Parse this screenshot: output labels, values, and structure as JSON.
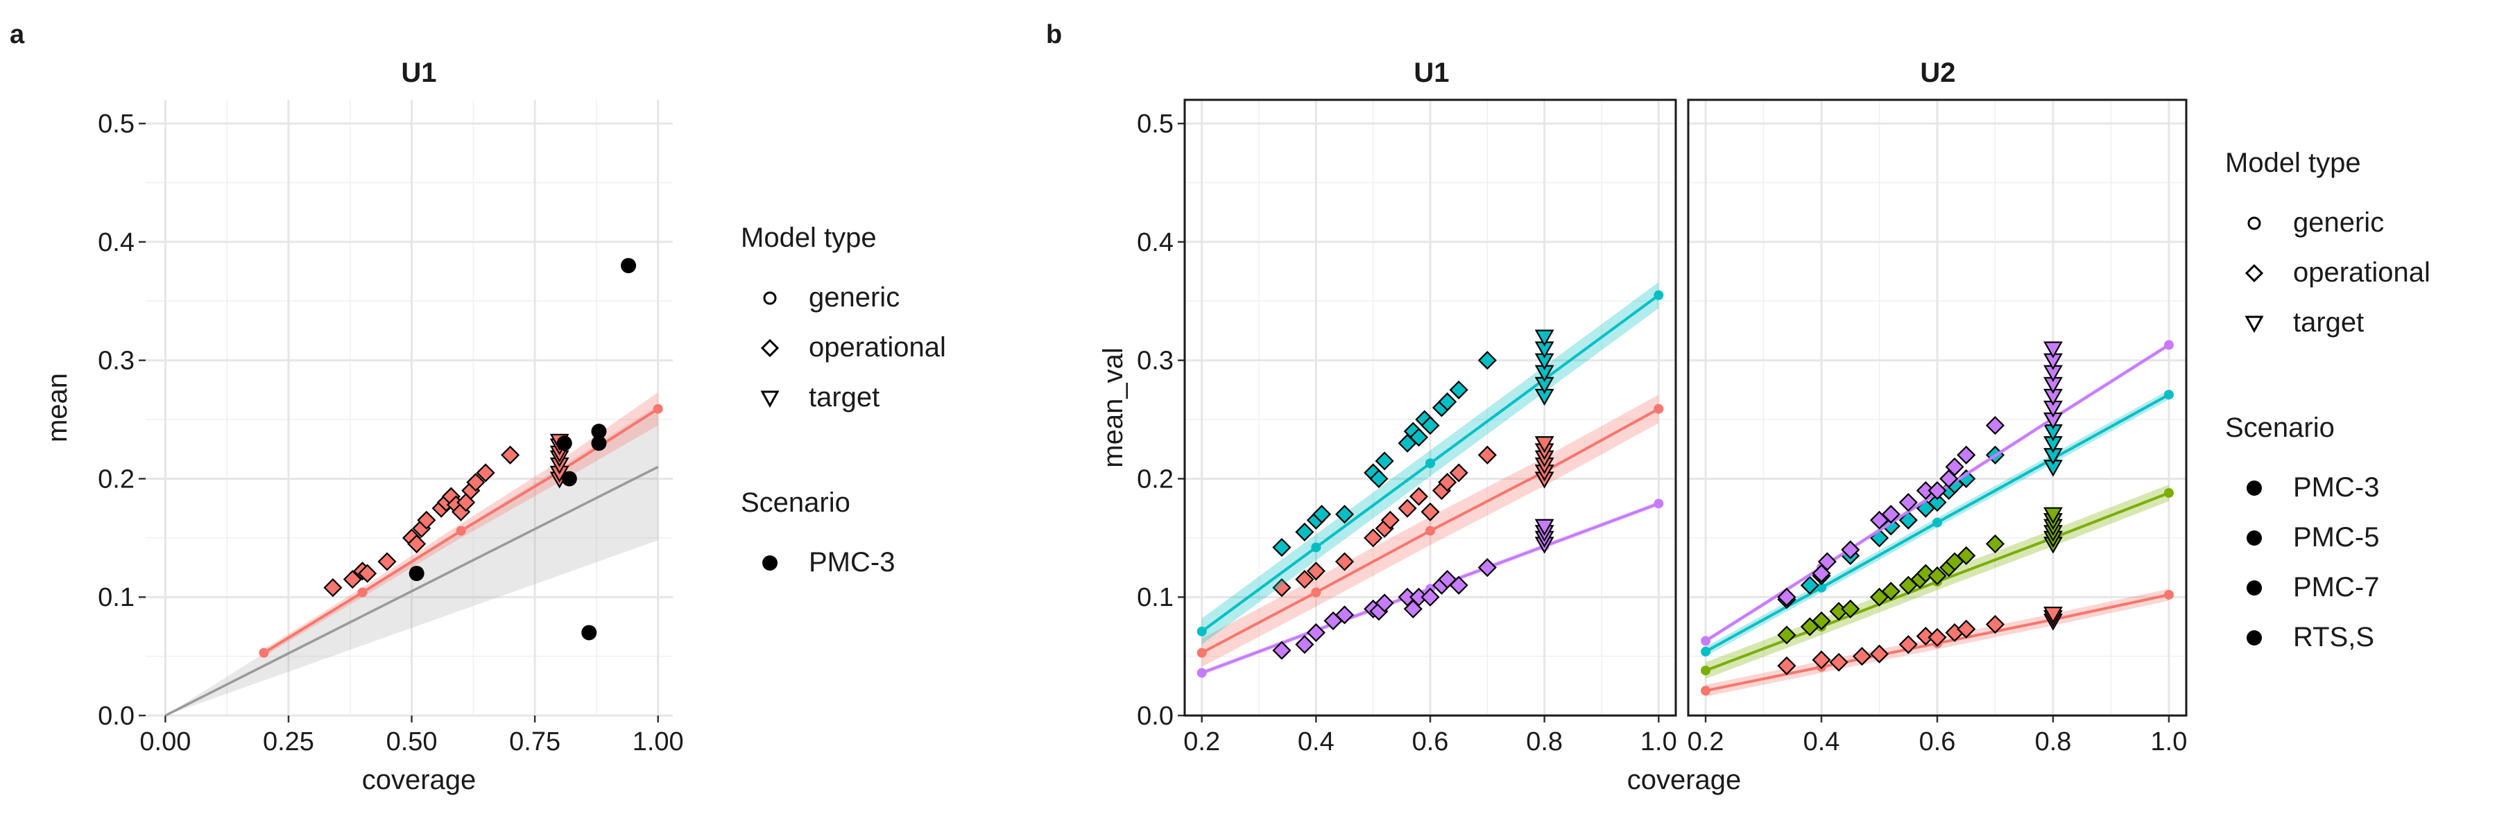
{
  "figure": {
    "panel_a_label": "a",
    "panel_b_label": "b"
  },
  "chart_data": [
    {
      "type": "scatter",
      "panel": "a",
      "title": "U1",
      "xlabel": "coverage",
      "ylabel": "mean",
      "xlim": [
        0,
        1.03
      ],
      "ylim": [
        0,
        0.52
      ],
      "xticks": [
        "0.00",
        "0.25",
        "0.50",
        "0.75",
        "1.00"
      ],
      "yticks": [
        "0.0",
        "0.1",
        "0.2",
        "0.3",
        "0.4",
        "0.5"
      ],
      "grid": true,
      "colors": {
        "model_line": "#F8766D",
        "reference": "#9a9a9a",
        "pmc3_points": "#000000"
      },
      "model_line": [
        [
          0.2,
          0.053
        ],
        [
          0.4,
          0.104
        ],
        [
          0.6,
          0.156
        ],
        [
          0.8,
          0.206
        ],
        [
          1.0,
          0.259
        ]
      ],
      "model_line_ci_halfwidth": [
        0.003,
        0.004,
        0.006,
        0.009,
        0.014
      ],
      "reference_line": {
        "x": [
          0,
          1
        ],
        "y": [
          0,
          0.21
        ],
        "ci_low": [
          0,
          0.148
        ],
        "ci_high": [
          0,
          0.262
        ]
      },
      "operational": [
        [
          0.34,
          0.108
        ],
        [
          0.38,
          0.115
        ],
        [
          0.4,
          0.122
        ],
        [
          0.41,
          0.12
        ],
        [
          0.45,
          0.13
        ],
        [
          0.5,
          0.15
        ],
        [
          0.51,
          0.145
        ],
        [
          0.52,
          0.158
        ],
        [
          0.53,
          0.165
        ],
        [
          0.56,
          0.175
        ],
        [
          0.57,
          0.18
        ],
        [
          0.58,
          0.185
        ],
        [
          0.59,
          0.178
        ],
        [
          0.6,
          0.172
        ],
        [
          0.61,
          0.18
        ],
        [
          0.62,
          0.19
        ],
        [
          0.63,
          0.197
        ],
        [
          0.65,
          0.205
        ],
        [
          0.7,
          0.22
        ]
      ],
      "target": [
        0.2,
        0.205,
        0.212,
        0.218,
        0.222,
        0.228,
        0.232
      ],
      "target_x": 0.8,
      "pmc3": [
        [
          0.51,
          0.12
        ],
        [
          0.81,
          0.23
        ],
        [
          0.82,
          0.2
        ],
        [
          0.86,
          0.07
        ],
        [
          0.88,
          0.23
        ],
        [
          0.88,
          0.24
        ],
        [
          0.94,
          0.38
        ]
      ],
      "legend": {
        "model_type_title": "Model type",
        "model_types": [
          "generic",
          "operational",
          "target"
        ],
        "scenario_title": "Scenario",
        "scenarios": [
          "PMC-3"
        ]
      }
    },
    {
      "type": "scatter",
      "panel": "b",
      "facets": [
        "U1",
        "U2"
      ],
      "xlabel": "coverage",
      "ylabel": "mean_val",
      "xlim": [
        0.17,
        1.03
      ],
      "ylim": [
        0,
        0.52
      ],
      "xticks": [
        "0.2",
        "0.4",
        "0.6",
        "0.8",
        "1.0"
      ],
      "yticks": [
        "0.0",
        "0.1",
        "0.2",
        "0.3",
        "0.4",
        "0.5"
      ],
      "grid": true,
      "series": [
        {
          "name": "PMC-3",
          "color": "#F8766D",
          "U1": {
            "line": [
              [
                0.2,
                0.053
              ],
              [
                0.4,
                0.104
              ],
              [
                0.6,
                0.156
              ],
              [
                0.8,
                0.206
              ],
              [
                1.0,
                0.259
              ]
            ],
            "ci": 0.012,
            "operational": [
              [
                0.34,
                0.108
              ],
              [
                0.38,
                0.115
              ],
              [
                0.4,
                0.122
              ],
              [
                0.45,
                0.13
              ],
              [
                0.5,
                0.15
              ],
              [
                0.52,
                0.158
              ],
              [
                0.53,
                0.165
              ],
              [
                0.56,
                0.175
              ],
              [
                0.58,
                0.185
              ],
              [
                0.6,
                0.172
              ],
              [
                0.62,
                0.19
              ],
              [
                0.63,
                0.197
              ],
              [
                0.65,
                0.205
              ],
              [
                0.7,
                0.22
              ]
            ],
            "target": [
              0.2,
              0.206,
              0.212,
              0.218,
              0.224,
              0.23
            ]
          },
          "U2": {
            "line": [
              [
                0.2,
                0.021
              ],
              [
                0.4,
                0.041
              ],
              [
                0.6,
                0.061
              ],
              [
                0.8,
                0.081
              ],
              [
                1.0,
                0.102
              ]
            ],
            "ci": 0.005,
            "operational": [
              [
                0.34,
                0.042
              ],
              [
                0.4,
                0.047
              ],
              [
                0.43,
                0.045
              ],
              [
                0.47,
                0.05
              ],
              [
                0.5,
                0.052
              ],
              [
                0.55,
                0.06
              ],
              [
                0.58,
                0.067
              ],
              [
                0.6,
                0.066
              ],
              [
                0.63,
                0.07
              ],
              [
                0.65,
                0.073
              ],
              [
                0.7,
                0.077
              ]
            ],
            "target": [
              0.08,
              0.083,
              0.086
            ]
          }
        },
        {
          "name": "PMC-5",
          "color": "#7CAE00",
          "U2": {
            "line": [
              [
                0.2,
                0.038
              ],
              [
                0.4,
                0.075
              ],
              [
                0.6,
                0.113
              ],
              [
                0.8,
                0.15
              ],
              [
                1.0,
                0.188
              ]
            ],
            "ci": 0.007,
            "operational": [
              [
                0.34,
                0.068
              ],
              [
                0.38,
                0.075
              ],
              [
                0.4,
                0.08
              ],
              [
                0.43,
                0.088
              ],
              [
                0.45,
                0.09
              ],
              [
                0.5,
                0.1
              ],
              [
                0.52,
                0.105
              ],
              [
                0.55,
                0.11
              ],
              [
                0.57,
                0.115
              ],
              [
                0.58,
                0.12
              ],
              [
                0.6,
                0.118
              ],
              [
                0.62,
                0.125
              ],
              [
                0.63,
                0.13
              ],
              [
                0.65,
                0.135
              ],
              [
                0.7,
                0.145
              ]
            ],
            "target": [
              0.145,
              0.15,
              0.155,
              0.16,
              0.165,
              0.17
            ]
          }
        },
        {
          "name": "PMC-7",
          "color": "#00BFC4",
          "U1": {
            "line": [
              [
                0.2,
                0.071
              ],
              [
                0.4,
                0.142
              ],
              [
                0.6,
                0.213
              ],
              [
                0.8,
                0.284
              ],
              [
                1.0,
                0.355
              ]
            ],
            "ci": 0.011,
            "operational": [
              [
                0.34,
                0.142
              ],
              [
                0.38,
                0.155
              ],
              [
                0.4,
                0.165
              ],
              [
                0.41,
                0.17
              ],
              [
                0.45,
                0.17
              ],
              [
                0.5,
                0.205
              ],
              [
                0.51,
                0.2
              ],
              [
                0.52,
                0.215
              ],
              [
                0.56,
                0.23
              ],
              [
                0.57,
                0.24
              ],
              [
                0.58,
                0.235
              ],
              [
                0.59,
                0.25
              ],
              [
                0.6,
                0.245
              ],
              [
                0.62,
                0.26
              ],
              [
                0.63,
                0.265
              ],
              [
                0.65,
                0.275
              ],
              [
                0.7,
                0.3
              ]
            ],
            "target": [
              0.27,
              0.28,
              0.29,
              0.3,
              0.31,
              0.32
            ]
          },
          "U2": {
            "line": [
              [
                0.2,
                0.054
              ],
              [
                0.4,
                0.108
              ],
              [
                0.6,
                0.163
              ],
              [
                0.8,
                0.217
              ],
              [
                1.0,
                0.271
              ]
            ],
            "ci": 0.004,
            "operational": [
              [
                0.34,
                0.098
              ],
              [
                0.38,
                0.11
              ],
              [
                0.4,
                0.118
              ],
              [
                0.45,
                0.135
              ],
              [
                0.5,
                0.15
              ],
              [
                0.52,
                0.16
              ],
              [
                0.55,
                0.165
              ],
              [
                0.58,
                0.175
              ],
              [
                0.6,
                0.18
              ],
              [
                0.62,
                0.19
              ],
              [
                0.63,
                0.195
              ],
              [
                0.65,
                0.2
              ],
              [
                0.7,
                0.22
              ]
            ],
            "target": [
              0.21,
              0.22,
              0.23,
              0.24,
              0.25
            ]
          }
        },
        {
          "name": "RTS,S",
          "color": "#C77CFF",
          "U1": {
            "line": [
              [
                0.2,
                0.036
              ],
              [
                0.4,
                0.072
              ],
              [
                0.6,
                0.107
              ],
              [
                0.8,
                0.143
              ],
              [
                1.0,
                0.179
              ]
            ],
            "ci": 0.002,
            "operational": [
              [
                0.34,
                0.055
              ],
              [
                0.38,
                0.06
              ],
              [
                0.4,
                0.07
              ],
              [
                0.43,
                0.08
              ],
              [
                0.45,
                0.085
              ],
              [
                0.5,
                0.09
              ],
              [
                0.51,
                0.088
              ],
              [
                0.52,
                0.095
              ],
              [
                0.56,
                0.1
              ],
              [
                0.57,
                0.09
              ],
              [
                0.58,
                0.1
              ],
              [
                0.6,
                0.1
              ],
              [
                0.62,
                0.11
              ],
              [
                0.63,
                0.115
              ],
              [
                0.65,
                0.11
              ],
              [
                0.7,
                0.125
              ]
            ],
            "target": [
              0.145,
              0.15,
              0.155,
              0.16
            ]
          },
          "U2": {
            "line": [
              [
                0.2,
                0.063
              ],
              [
                0.4,
                0.125
              ],
              [
                0.6,
                0.188
              ],
              [
                0.8,
                0.251
              ],
              [
                1.0,
                0.313
              ]
            ],
            "ci": 0.002,
            "operational": [
              [
                0.34,
                0.1
              ],
              [
                0.4,
                0.12
              ],
              [
                0.41,
                0.13
              ],
              [
                0.45,
                0.14
              ],
              [
                0.5,
                0.165
              ],
              [
                0.52,
                0.17
              ],
              [
                0.55,
                0.18
              ],
              [
                0.58,
                0.19
              ],
              [
                0.6,
                0.19
              ],
              [
                0.62,
                0.2
              ],
              [
                0.63,
                0.21
              ],
              [
                0.65,
                0.22
              ],
              [
                0.7,
                0.245
              ]
            ],
            "target": [
              0.25,
              0.26,
              0.27,
              0.28,
              0.29,
              0.3,
              0.31
            ]
          }
        }
      ],
      "legend": {
        "model_type_title": "Model type",
        "model_types": [
          "generic",
          "operational",
          "target"
        ],
        "scenario_title": "Scenario",
        "scenarios": [
          "PMC-3",
          "PMC-5",
          "PMC-7",
          "RTS,S"
        ]
      }
    }
  ]
}
